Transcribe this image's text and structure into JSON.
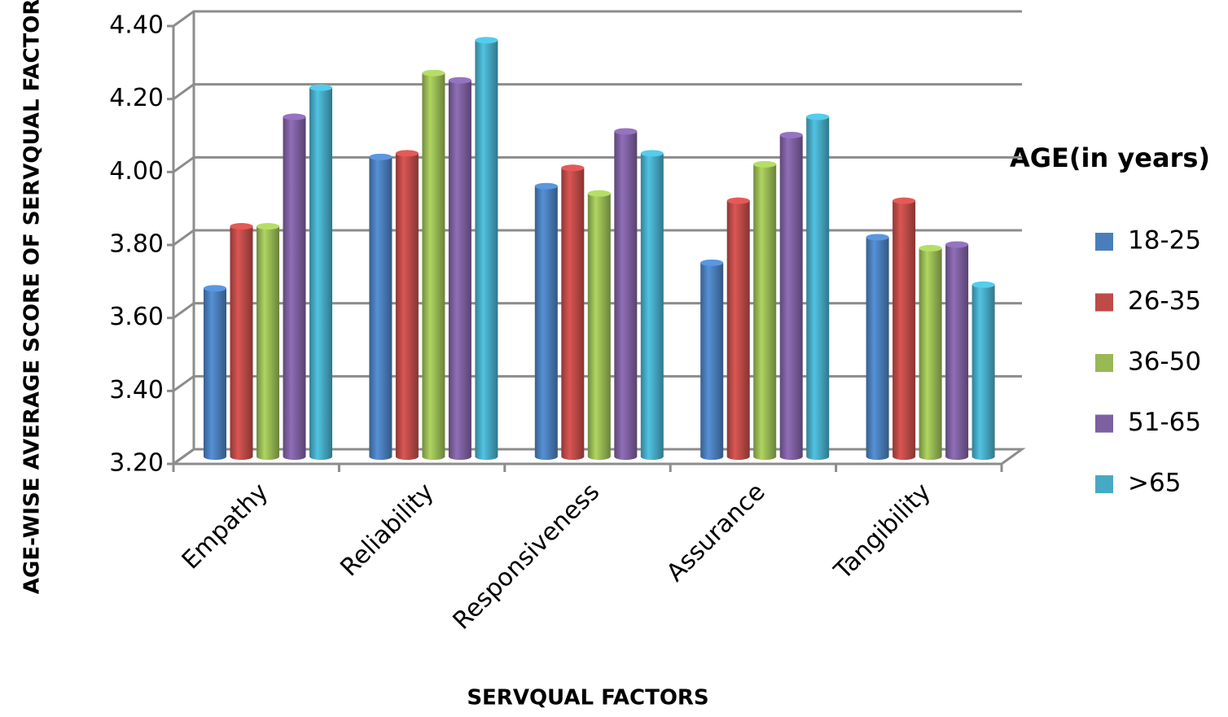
{
  "chart_data": {
    "type": "bar3d",
    "x_label": "SERVQUAL FACTORS",
    "y_label": "AGE-WISE AVERAGE SCORE OF SERVQUAL FACTORS",
    "legend_title": "AGE(in years)",
    "legend_position": "right",
    "grid": true,
    "categories": [
      "Empathy",
      "Reliability",
      "Responsiveness",
      "Assurance",
      "Tangibility"
    ],
    "series": [
      {
        "name": "18-25",
        "color": "#4a7ebb",
        "values": [
          3.65,
          4.01,
          3.93,
          3.72,
          3.79
        ]
      },
      {
        "name": "26-35",
        "color": "#be4b48",
        "values": [
          3.82,
          4.02,
          3.98,
          3.89,
          3.89
        ]
      },
      {
        "name": "36-50",
        "color": "#98b954",
        "values": [
          3.82,
          4.24,
          3.91,
          3.99,
          3.76
        ]
      },
      {
        "name": "51-65",
        "color": "#7d60a0",
        "values": [
          4.12,
          4.22,
          4.08,
          4.07,
          3.77
        ]
      },
      {
        "name": ">65",
        "color": "#46aac5",
        "values": [
          4.2,
          4.33,
          4.02,
          4.12,
          3.66
        ]
      }
    ],
    "ylim": [
      3.2,
      4.4
    ],
    "yticks": [
      {
        "value": 3.2,
        "label": "3.20"
      },
      {
        "value": 3.4,
        "label": "3.40"
      },
      {
        "value": 3.6,
        "label": "3.60"
      },
      {
        "value": 3.8,
        "label": "3.80"
      },
      {
        "value": 4.0,
        "label": "4.00"
      },
      {
        "value": 4.2,
        "label": "4.20"
      },
      {
        "value": 4.4,
        "label": "4.40"
      }
    ]
  }
}
